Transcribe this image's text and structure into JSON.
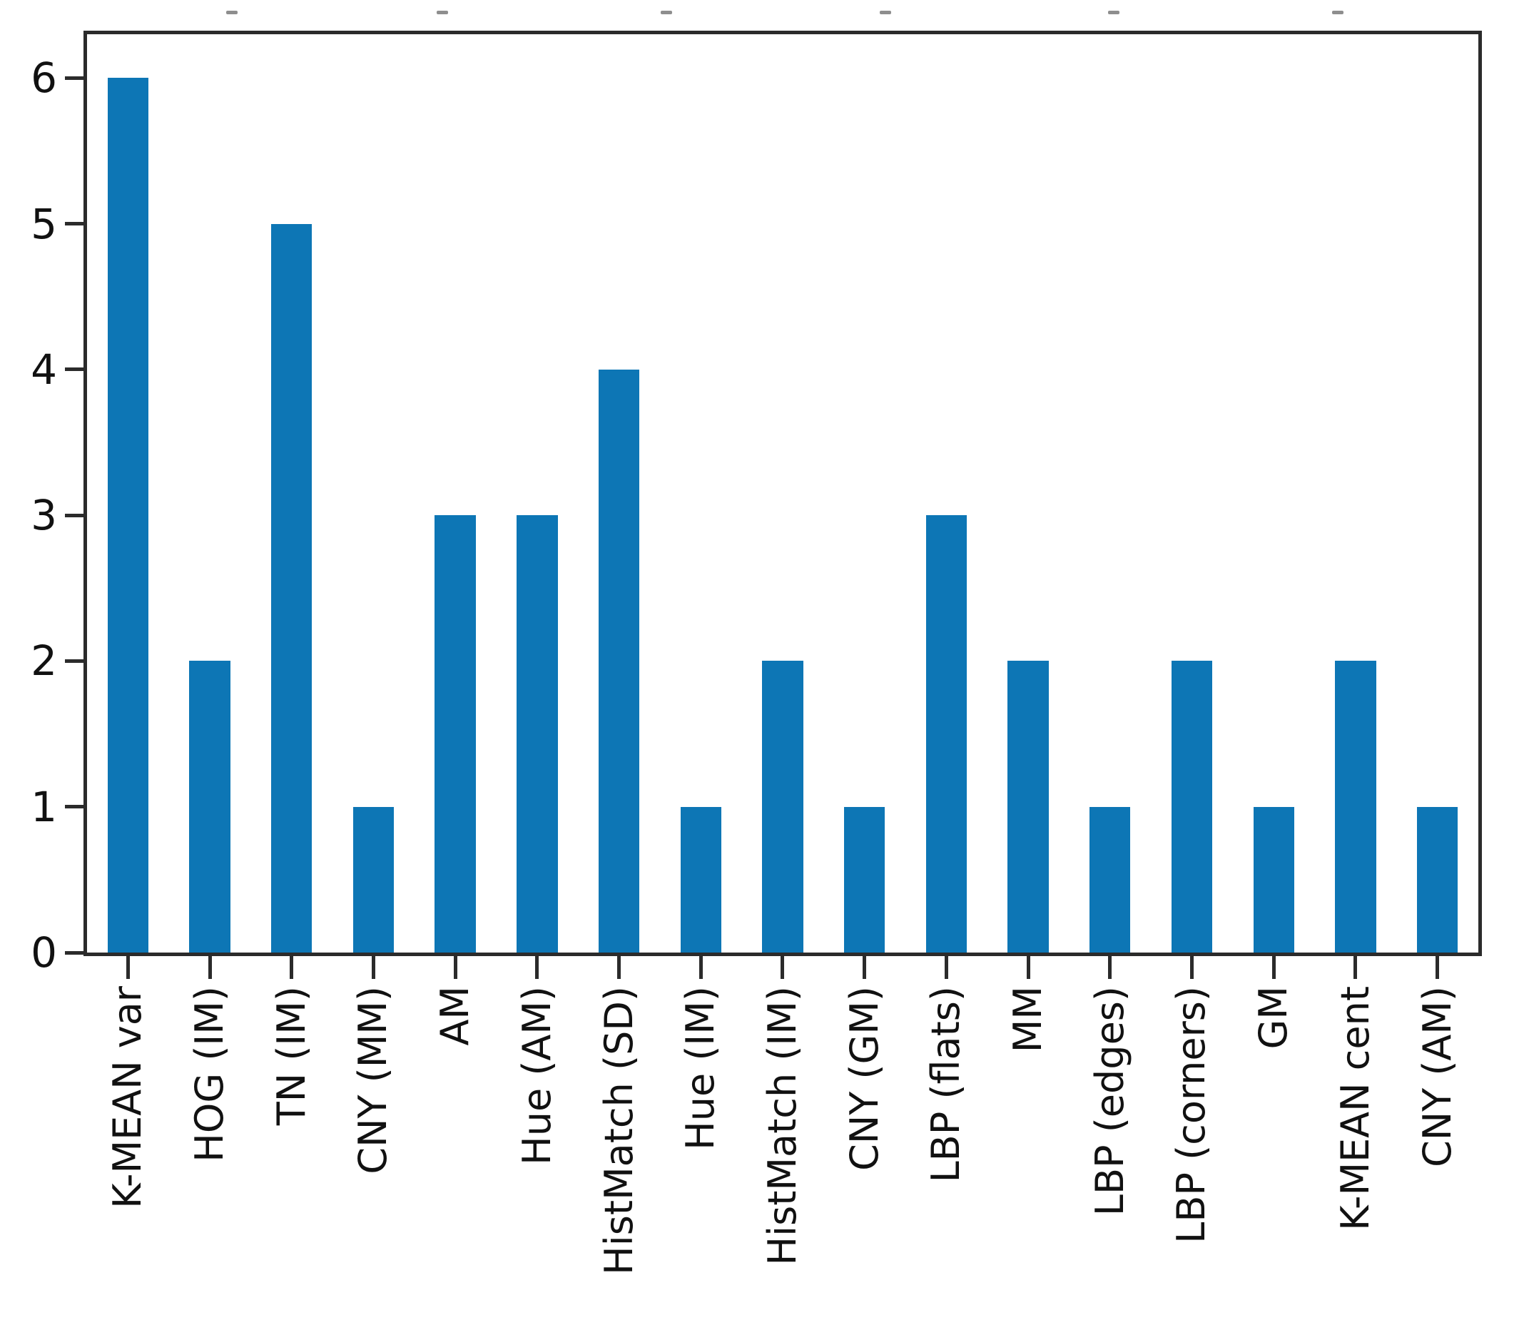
{
  "chart_data": {
    "type": "bar",
    "title": "",
    "xlabel": "",
    "ylabel": "",
    "categories": [
      "K-MEAN var",
      "HOG (IM)",
      "TN (IM)",
      "CNY (MM)",
      "AM",
      "Hue (AM)",
      "HistMatch (SD)",
      "Hue (IM)",
      "HistMatch (IM)",
      "CNY (GM)",
      "LBP (flats)",
      "MM",
      "LBP (edges)",
      "LBP (corners)",
      "GM",
      "K-MEAN cent",
      "CNY (AM)"
    ],
    "values": [
      6,
      2,
      5,
      1,
      3,
      3,
      4,
      1,
      2,
      1,
      3,
      2,
      1,
      2,
      1,
      2,
      1
    ],
    "yticks": [
      0,
      1,
      2,
      3,
      4,
      5,
      6
    ],
    "ylim": [
      0,
      6.3
    ],
    "grid": false,
    "legend_position": "none",
    "bar_width_fraction": 0.5,
    "colors": {
      "bar": "#0d76b5",
      "spine": "#2b2b2b",
      "tick_label": "#111111",
      "background": "#ffffff",
      "top_artifact": "#8e8e8e"
    }
  },
  "artifacts": {
    "top_dashes_x": [
      317,
      612,
      926,
      1233,
      1553,
      1867
    ],
    "top_dashes_y": 15
  },
  "layout_note": "axis tick labels 0-6 on y; category labels rotated 90 degrees below x axis"
}
